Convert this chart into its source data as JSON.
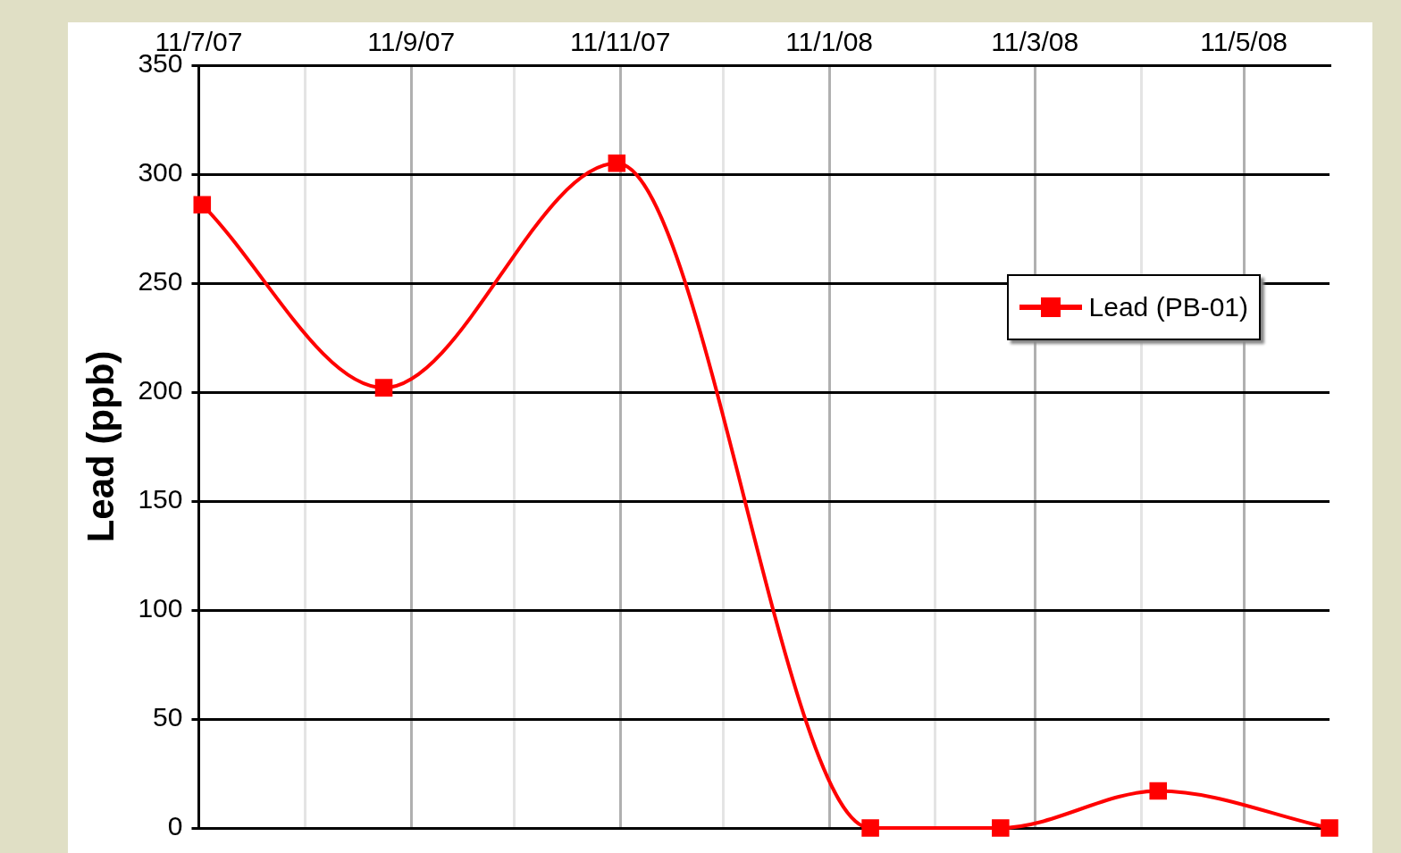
{
  "chart_data": {
    "type": "line",
    "ylabel": "Lead (ppb)",
    "x": [
      "2007-07-12",
      "2007-09-03",
      "2007-11-10",
      "2008-01-23",
      "2008-03-01",
      "2008-04-16",
      "2008-06-05"
    ],
    "series": [
      {
        "name": "Lead (PB-01)",
        "color": "#ff0000",
        "values": [
          286,
          202,
          305,
          0,
          0,
          17,
          0
        ]
      }
    ],
    "xlim": [
      "2007-07-11",
      "2008-06-05"
    ],
    "xticks": [
      {
        "value": "2007-07-11",
        "label": "11/7/07"
      },
      {
        "value": "2007-08-11",
        "label": null
      },
      {
        "value": "2007-09-11",
        "label": "11/9/07"
      },
      {
        "value": "2007-10-11",
        "label": null
      },
      {
        "value": "2007-11-11",
        "label": "11/11/07"
      },
      {
        "value": "2007-12-11",
        "label": null
      },
      {
        "value": "2008-01-11",
        "label": "11/1/08"
      },
      {
        "value": "2008-02-11",
        "label": null
      },
      {
        "value": "2008-03-11",
        "label": "11/3/08"
      },
      {
        "value": "2008-04-11",
        "label": null
      },
      {
        "value": "2008-05-11",
        "label": "11/5/08"
      }
    ],
    "ylim": [
      0,
      350
    ],
    "yticks": [
      0,
      50,
      100,
      150,
      200,
      250,
      300,
      350
    ],
    "grid": true,
    "legend": "top right",
    "marker": "square",
    "line_style": "solid"
  }
}
